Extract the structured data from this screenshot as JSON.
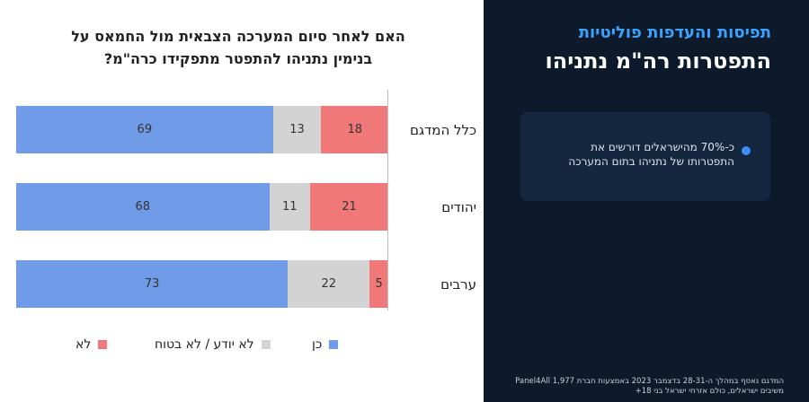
{
  "question": "האם לאחר סיום המערכה הצבאית מול החמאס על בנימין נתניהו להתפטר מתפקידו כרה\"מ?",
  "side_panel": {
    "subtitle": "תפיסות והעדפות פוליטיות",
    "title": "התפטרות רה\"מ נתניהו",
    "highlight": "כ-70% מהישראלים דורשים את התפטרותו של נתניהו בתום המערכה",
    "footnote": "המדגם נאסף במהלך ה-28-31 בדצמבר 2023 באמצעות חברת Panel4All 1,977 משיבים ישראלים, כולם אזרחי ישראל בני 18+"
  },
  "colors": {
    "yes": "#6f9be8",
    "unsure": "#d3d3d3",
    "no": "#f07878",
    "panel_bg": "#0c1a2b",
    "accent": "#3ba3ff"
  },
  "chart_data": {
    "type": "bar",
    "orientation": "horizontal",
    "stacked": true,
    "categories": [
      "כלל המדגם",
      "יהודים",
      "ערבים"
    ],
    "series": [
      {
        "name": "כן",
        "values": [
          69,
          68,
          73
        ]
      },
      {
        "name": "לא יודע / לא בטוח",
        "values": [
          13,
          11,
          22
        ]
      },
      {
        "name": "לא",
        "values": [
          18,
          21,
          5
        ]
      }
    ],
    "xlim": [
      0,
      100
    ],
    "legend_position": "bottom"
  }
}
